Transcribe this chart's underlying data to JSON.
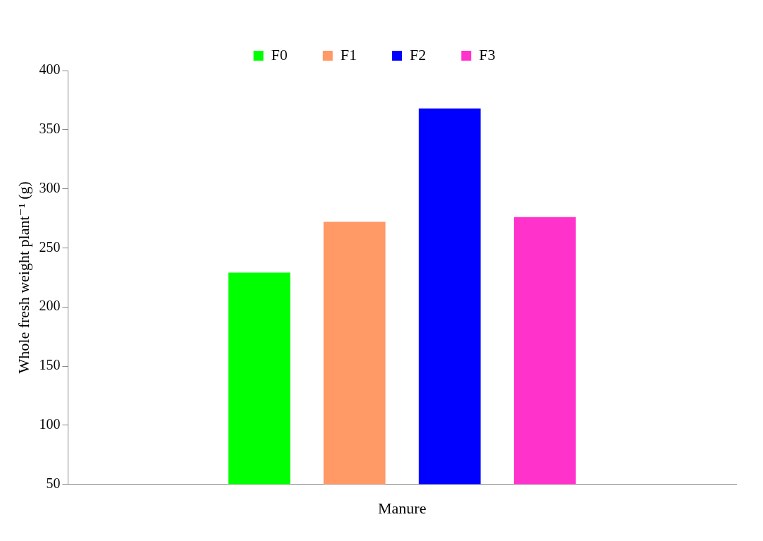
{
  "chart_data": {
    "type": "bar",
    "ylabel": "Whole fresh weight plant⁻¹ (g)",
    "categories": [
      "Manure"
    ],
    "series": [
      {
        "name": "F0",
        "color": "#00ff00",
        "values": [
          229
        ]
      },
      {
        "name": "F1",
        "color": "#ff9966",
        "values": [
          272
        ]
      },
      {
        "name": "F2",
        "color": "#0000ff",
        "values": [
          368
        ]
      },
      {
        "name": "F3",
        "color": "#ff33cc",
        "values": [
          276
        ]
      }
    ],
    "ylim": [
      50,
      400
    ],
    "yticks": [
      50,
      100,
      150,
      200,
      250,
      300,
      350,
      400
    ],
    "grid": false,
    "legend": "top"
  }
}
